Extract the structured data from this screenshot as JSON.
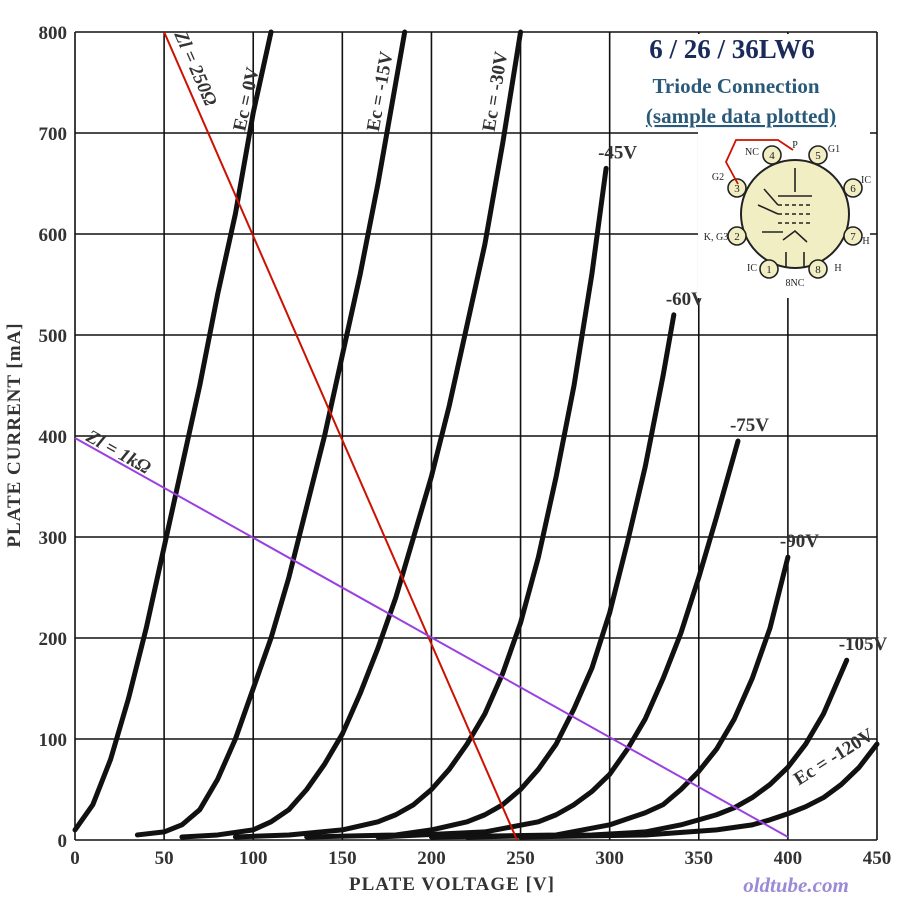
{
  "title": "6 / 26 / 36LW6",
  "subtitle": "Triode  Connection",
  "note": "(sample data plotted)",
  "source": "oldtube.com",
  "colors": {
    "curve": "#111111",
    "grid": "#111111",
    "load_250": "#cc1100",
    "load_1k": "#9a40e0",
    "title": "#1a2a5a",
    "subtitle": "#2a5a7a",
    "source": "#9b8ad6",
    "pin_fill": "#f2eec4"
  },
  "pinout": {
    "labels": [
      "NC",
      "P",
      "G1",
      "G2",
      "IC",
      "K, G3",
      "H",
      "IC",
      "8NC",
      "H"
    ],
    "pin_numbers": [
      "1",
      "2",
      "3",
      "4",
      "5",
      "6",
      "7",
      "8"
    ]
  },
  "chart_data": {
    "type": "line",
    "xlabel": "PLATE  VOLTAGE  [V]",
    "ylabel": "PLATE  CURRENT  [mA]",
    "xlim": [
      0,
      450
    ],
    "ylim": [
      0,
      800
    ],
    "x_ticks": [
      0,
      50,
      100,
      150,
      200,
      250,
      300,
      350,
      400,
      450
    ],
    "y_ticks": [
      0,
      100,
      200,
      300,
      400,
      500,
      600,
      700,
      800
    ],
    "grid": true,
    "series": [
      {
        "name": "Ec = 0V",
        "label_pos": "top",
        "x": [
          0,
          10,
          20,
          30,
          40,
          50,
          60,
          70,
          80,
          90,
          100,
          110
        ],
        "y": [
          10,
          35,
          80,
          140,
          210,
          290,
          370,
          450,
          540,
          620,
          720,
          800
        ]
      },
      {
        "name": "Ec = -15V",
        "label_pos": "top",
        "x": [
          35,
          50,
          60,
          70,
          80,
          90,
          100,
          110,
          120,
          130,
          140,
          150,
          160,
          170,
          180,
          185
        ],
        "y": [
          5,
          8,
          15,
          30,
          60,
          100,
          150,
          200,
          260,
          330,
          400,
          480,
          560,
          650,
          750,
          800
        ]
      },
      {
        "name": "Ec = -30V",
        "label_pos": "top",
        "x": [
          60,
          80,
          100,
          110,
          120,
          130,
          140,
          150,
          160,
          170,
          180,
          190,
          200,
          210,
          220,
          230,
          240,
          250
        ],
        "y": [
          3,
          5,
          10,
          18,
          30,
          50,
          75,
          105,
          145,
          190,
          240,
          300,
          360,
          430,
          510,
          590,
          690,
          800
        ]
      },
      {
        "name": "-45V",
        "label_pos": "end",
        "x": [
          90,
          120,
          150,
          170,
          180,
          190,
          200,
          210,
          220,
          230,
          240,
          250,
          260,
          270,
          280,
          290,
          298
        ],
        "y": [
          3,
          5,
          10,
          18,
          25,
          35,
          50,
          70,
          95,
          125,
          165,
          215,
          280,
          360,
          450,
          560,
          665
        ]
      },
      {
        "name": "-60V",
        "label_pos": "end",
        "x": [
          130,
          180,
          200,
          220,
          230,
          240,
          250,
          260,
          270,
          280,
          290,
          300,
          310,
          320,
          330,
          336
        ],
        "y": [
          3,
          5,
          10,
          18,
          25,
          35,
          50,
          70,
          95,
          130,
          170,
          225,
          295,
          370,
          460,
          520
        ]
      },
      {
        "name": "-75V",
        "label_pos": "end",
        "x": [
          170,
          230,
          260,
          270,
          280,
          290,
          300,
          310,
          320,
          330,
          340,
          350,
          360,
          372
        ],
        "y": [
          3,
          8,
          18,
          25,
          35,
          48,
          65,
          90,
          120,
          160,
          205,
          260,
          320,
          395
        ]
      },
      {
        "name": "-90V",
        "label_pos": "end",
        "x": [
          200,
          270,
          300,
          320,
          330,
          340,
          350,
          360,
          370,
          380,
          390,
          400
        ],
        "y": [
          3,
          5,
          15,
          27,
          35,
          50,
          68,
          90,
          120,
          160,
          210,
          280
        ]
      },
      {
        "name": "-105V",
        "label_pos": "end",
        "x": [
          220,
          290,
          320,
          340,
          360,
          370,
          380,
          390,
          400,
          410,
          420,
          433
        ],
        "y": [
          3,
          5,
          8,
          15,
          25,
          32,
          42,
          55,
          72,
          95,
          125,
          178
        ]
      },
      {
        "name": "Ec = -120V",
        "label_pos": "end",
        "x": [
          250,
          320,
          360,
          380,
          390,
          400,
          410,
          420,
          430,
          440,
          450
        ],
        "y": [
          3,
          5,
          10,
          15,
          20,
          26,
          33,
          42,
          55,
          72,
          95
        ]
      }
    ],
    "load_lines": [
      {
        "name": "Zl = 250Ω",
        "color": "#cc1100",
        "x": [
          50,
          248
        ],
        "y": [
          800,
          0
        ]
      },
      {
        "name": "Zl = 1kΩ",
        "color": "#9a40e0",
        "x": [
          0,
          400
        ],
        "y": [
          398,
          3
        ]
      }
    ]
  }
}
